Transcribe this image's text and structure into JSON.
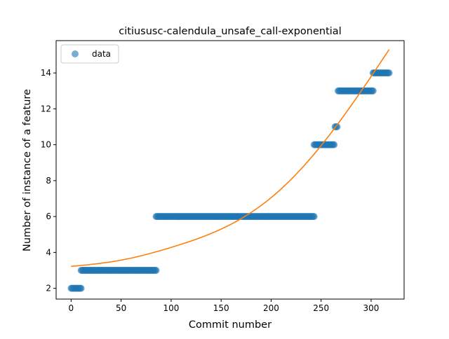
{
  "chart_data": {
    "type": "scatter",
    "title": "citiususc-calendula_unsafe_call-exponential",
    "xlabel": "Commit number",
    "ylabel": "Number of instance of a feature",
    "xlim": [
      -15,
      333
    ],
    "ylim": [
      1.4,
      15.8
    ],
    "xticks": [
      0,
      50,
      100,
      150,
      200,
      250,
      300
    ],
    "yticks": [
      2,
      4,
      6,
      8,
      10,
      12,
      14
    ],
    "grid": false,
    "legend": {
      "position": "top-left",
      "entries": [
        "data"
      ]
    },
    "colors": {
      "data": "#1f77b4",
      "fit": "#ff7f0e"
    },
    "series": [
      {
        "name": "data",
        "kind": "scatter",
        "segments": [
          {
            "x_start": 0,
            "x_end": 10,
            "y": 2
          },
          {
            "x_start": 10,
            "x_end": 85,
            "y": 3
          },
          {
            "x_start": 85,
            "x_end": 243,
            "y": 6
          },
          {
            "x_start": 243,
            "x_end": 263,
            "y": 10
          },
          {
            "x_start": 264,
            "x_end": 266,
            "y": 11
          },
          {
            "x_start": 267,
            "x_end": 302,
            "y": 13
          },
          {
            "x_start": 302,
            "x_end": 318,
            "y": 14
          }
        ]
      },
      {
        "kind": "line",
        "x": [
          0,
          50,
          100,
          150,
          200,
          250,
          300,
          318
        ],
        "y": [
          3.22,
          3.57,
          4.28,
          5.3,
          7.05,
          9.95,
          13.8,
          15.3
        ]
      }
    ]
  }
}
